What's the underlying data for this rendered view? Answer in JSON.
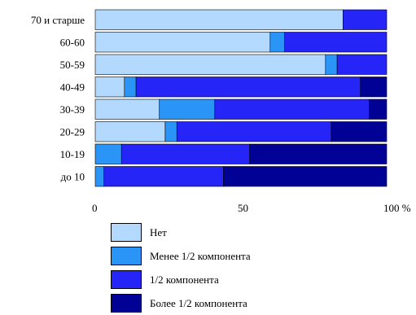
{
  "chart_data": {
    "type": "bar",
    "orientation": "horizontal",
    "stacked": true,
    "percent": true,
    "categories": [
      "70 и старше",
      "60-60",
      "50-59",
      "40-49",
      "30-39",
      "20-29",
      "10-19",
      "до 10"
    ],
    "series": [
      {
        "name": "Нет",
        "color": "#b4d9ff",
        "values": [
          85,
          60,
          79,
          10,
          22,
          24,
          0,
          0
        ]
      },
      {
        "name": "Менее 1/2 компонента",
        "color": "#2b94f7",
        "values": [
          0,
          5,
          4,
          4,
          19,
          4,
          9,
          3
        ]
      },
      {
        "name": "1/2 компонента",
        "color": "#2525f7",
        "values": [
          15,
          35,
          17,
          77,
          53,
          53,
          44,
          41
        ]
      },
      {
        "name": "Более 1/2 компонента",
        "color": "#010196",
        "values": [
          0,
          0,
          0,
          9,
          6,
          19,
          47,
          56
        ]
      }
    ],
    "xlim": [
      0,
      100
    ],
    "xticks": [
      {
        "value": 0,
        "label": "0"
      },
      {
        "value": 50,
        "label": "50"
      },
      {
        "value": 100,
        "label": "100 %"
      }
    ],
    "title": "",
    "xlabel": "",
    "ylabel": "",
    "grid": false,
    "legend_position": "bottom"
  }
}
